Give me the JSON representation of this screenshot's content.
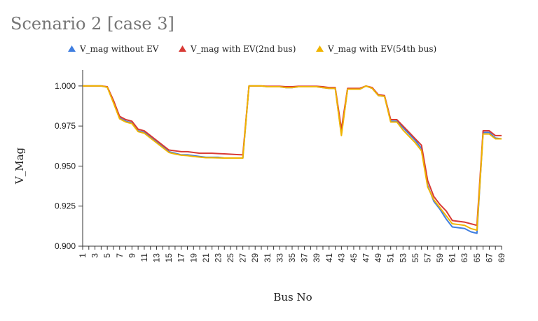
{
  "chart_data": {
    "type": "line",
    "title": "Scenario 2 [case 3]",
    "xlabel": "Bus No",
    "ylabel": "V_Mag",
    "ylim": [
      0.9,
      1.01
    ],
    "yticks": [
      "0.900",
      "0.925",
      "0.950",
      "0.975",
      "1.000"
    ],
    "ytick_values": [
      0.9,
      0.925,
      0.95,
      0.975,
      1.0
    ],
    "xtick_labels": [
      "1",
      "3",
      "5",
      "7",
      "9",
      "11",
      "13",
      "15",
      "17",
      "19",
      "21",
      "23",
      "25",
      "27",
      "29",
      "31",
      "33",
      "35",
      "37",
      "39",
      "41",
      "43",
      "45",
      "47",
      "49",
      "51",
      "53",
      "55",
      "57",
      "59",
      "61",
      "63",
      "65",
      "67",
      "69"
    ],
    "legend_position": "top",
    "x": [
      1,
      2,
      3,
      4,
      5,
      6,
      7,
      8,
      9,
      10,
      11,
      12,
      13,
      14,
      15,
      16,
      17,
      18,
      19,
      20,
      21,
      22,
      23,
      24,
      25,
      26,
      27,
      28,
      29,
      30,
      31,
      32,
      33,
      34,
      35,
      36,
      37,
      38,
      39,
      40,
      41,
      42,
      43,
      44,
      45,
      46,
      47,
      48,
      49,
      50,
      51,
      52,
      53,
      54,
      55,
      56,
      57,
      58,
      59,
      60,
      61,
      62,
      63,
      64,
      65,
      66,
      67,
      68,
      69
    ],
    "series": [
      {
        "name": "V_mag without EV",
        "color": "#3f7ee0",
        "values": [
          1.0,
          1.0,
          1.0,
          1.0,
          0.9992,
          0.99,
          0.98,
          0.978,
          0.977,
          0.972,
          0.971,
          0.968,
          0.965,
          0.962,
          0.959,
          0.958,
          0.957,
          0.957,
          0.9565,
          0.956,
          0.9555,
          0.9555,
          0.9555,
          0.955,
          0.955,
          0.955,
          0.955,
          1.0,
          1.0,
          1.0,
          0.9995,
          0.9995,
          0.9995,
          0.999,
          0.999,
          0.9995,
          0.9995,
          0.9995,
          0.9995,
          0.999,
          0.9985,
          0.9985,
          0.97,
          0.998,
          0.998,
          0.998,
          1.0,
          0.9985,
          0.994,
          0.9935,
          0.978,
          0.978,
          0.974,
          0.97,
          0.966,
          0.961,
          0.938,
          0.928,
          0.923,
          0.917,
          0.912,
          0.9115,
          0.911,
          0.909,
          0.908,
          0.971,
          0.971,
          0.9675,
          0.967
        ]
      },
      {
        "name": "V_mag with EV(2nd bus)",
        "color": "#d83a35",
        "values": [
          1.0,
          1.0,
          1.0,
          1.0,
          0.9995,
          0.991,
          0.981,
          0.979,
          0.978,
          0.973,
          0.972,
          0.969,
          0.966,
          0.963,
          0.96,
          0.9595,
          0.959,
          0.959,
          0.9585,
          0.958,
          0.958,
          0.958,
          0.9578,
          0.9576,
          0.9574,
          0.9572,
          0.957,
          1.0,
          1.0,
          1.0,
          0.9998,
          0.9998,
          0.9998,
          0.9995,
          0.9995,
          0.9998,
          0.9998,
          0.9998,
          0.9998,
          0.9995,
          0.999,
          0.999,
          0.973,
          0.9985,
          0.9985,
          0.9985,
          1.0,
          0.999,
          0.9945,
          0.994,
          0.979,
          0.979,
          0.975,
          0.971,
          0.967,
          0.963,
          0.941,
          0.931,
          0.926,
          0.922,
          0.916,
          0.9155,
          0.915,
          0.914,
          0.913,
          0.972,
          0.972,
          0.969,
          0.969
        ]
      },
      {
        "name": "V_mag with EV(54th bus)",
        "color": "#f0b400",
        "values": [
          1.0,
          1.0,
          1.0,
          1.0,
          0.9992,
          0.9895,
          0.9795,
          0.9775,
          0.9765,
          0.9715,
          0.9705,
          0.9675,
          0.9645,
          0.9615,
          0.9585,
          0.9575,
          0.9568,
          0.9565,
          0.956,
          0.9556,
          0.9552,
          0.9552,
          0.9551,
          0.955,
          0.955,
          0.955,
          0.955,
          1.0,
          1.0,
          1.0,
          0.9995,
          0.9995,
          0.9995,
          0.999,
          0.999,
          0.9995,
          0.9995,
          0.9995,
          0.9995,
          0.999,
          0.9985,
          0.9985,
          0.969,
          0.998,
          0.998,
          0.998,
          1.0,
          0.9985,
          0.994,
          0.9935,
          0.9775,
          0.9775,
          0.9725,
          0.9685,
          0.9645,
          0.9595,
          0.937,
          0.929,
          0.924,
          0.919,
          0.914,
          0.9135,
          0.913,
          0.911,
          0.91,
          0.97,
          0.97,
          0.967,
          0.967
        ]
      }
    ]
  }
}
